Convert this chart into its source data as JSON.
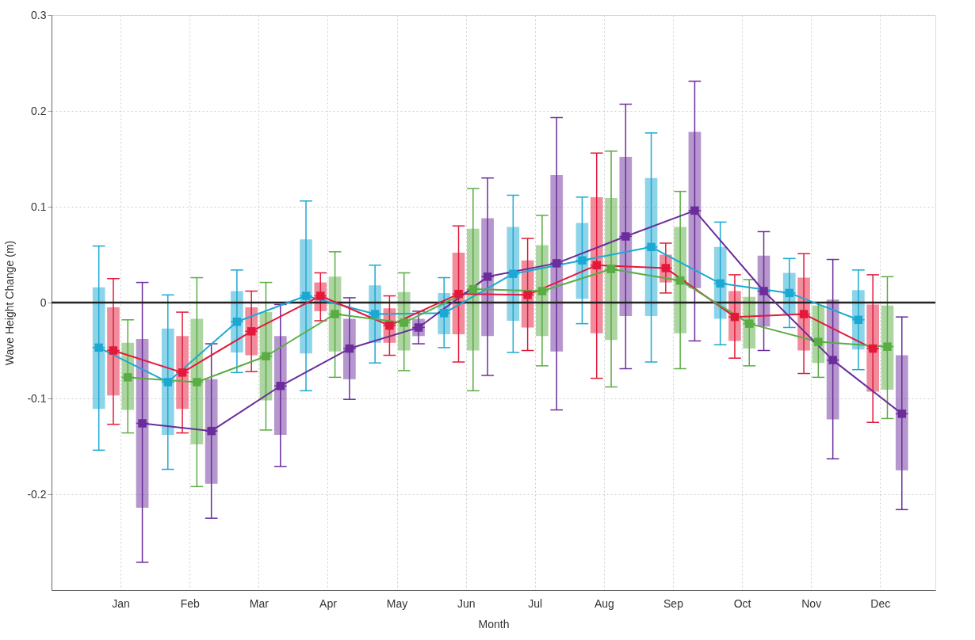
{
  "chart_data": {
    "type": "box",
    "xlabel": "Month",
    "ylabel": "Wave Height Change (m)",
    "categories": [
      "Jan",
      "Feb",
      "Mar",
      "Apr",
      "May",
      "Jun",
      "Jul",
      "Aug",
      "Sep",
      "Oct",
      "Nov",
      "Dec"
    ],
    "ylim": [
      -0.3,
      0.3
    ],
    "yticks": [
      -0.2,
      -0.1,
      0,
      0.1,
      0.2,
      0.3
    ],
    "grid": true,
    "marker": "square",
    "line_style": "solid",
    "ref_lines": [
      {
        "axis": "y",
        "value": 0,
        "color": "#222222"
      }
    ],
    "series": [
      {
        "color": "#1ba9d3",
        "boxes": [
          {
            "low": -0.154,
            "q1": -0.111,
            "median": -0.047,
            "q3": 0.016,
            "high": 0.059
          },
          {
            "low": -0.174,
            "q1": -0.138,
            "median": -0.083,
            "q3": -0.027,
            "high": 0.008
          },
          {
            "low": -0.073,
            "q1": -0.052,
            "median": -0.02,
            "q3": 0.012,
            "high": 0.034
          },
          {
            "low": -0.092,
            "q1": -0.053,
            "median": 0.007,
            "q3": 0.066,
            "high": 0.106
          },
          {
            "low": -0.063,
            "q1": -0.042,
            "median": -0.012,
            "q3": 0.018,
            "high": 0.039
          },
          {
            "low": -0.047,
            "q1": -0.033,
            "median": -0.011,
            "q3": 0.01,
            "high": 0.026
          },
          {
            "low": -0.052,
            "q1": -0.019,
            "median": 0.03,
            "q3": 0.079,
            "high": 0.112
          },
          {
            "low": -0.022,
            "q1": 0.004,
            "median": 0.044,
            "q3": 0.083,
            "high": 0.11
          },
          {
            "low": -0.062,
            "q1": -0.014,
            "median": 0.058,
            "q3": 0.13,
            "high": 0.177
          },
          {
            "low": -0.044,
            "q1": -0.017,
            "median": 0.02,
            "q3": 0.058,
            "high": 0.084
          },
          {
            "low": -0.026,
            "q1": -0.012,
            "median": 0.01,
            "q3": 0.031,
            "high": 0.046
          },
          {
            "low": -0.07,
            "q1": -0.049,
            "median": -0.018,
            "q3": 0.013,
            "high": 0.034
          }
        ]
      },
      {
        "color": "#e3193b",
        "boxes": [
          {
            "low": -0.127,
            "q1": -0.097,
            "median": -0.05,
            "q3": -0.005,
            "high": 0.025
          },
          {
            "low": -0.136,
            "q1": -0.111,
            "median": -0.073,
            "q3": -0.035,
            "high": -0.01
          },
          {
            "low": -0.072,
            "q1": -0.055,
            "median": -0.03,
            "q3": -0.005,
            "high": 0.012
          },
          {
            "low": -0.019,
            "q1": -0.009,
            "median": 0.007,
            "q3": 0.021,
            "high": 0.031
          },
          {
            "low": -0.055,
            "q1": -0.042,
            "median": -0.024,
            "q3": -0.006,
            "high": 0.007
          },
          {
            "low": -0.062,
            "q1": -0.033,
            "median": 0.009,
            "q3": 0.052,
            "high": 0.08
          },
          {
            "low": -0.05,
            "q1": -0.026,
            "median": 0.008,
            "q3": 0.044,
            "high": 0.067
          },
          {
            "low": -0.079,
            "q1": -0.032,
            "median": 0.039,
            "q3": 0.11,
            "high": 0.156
          },
          {
            "low": 0.01,
            "q1": 0.021,
            "median": 0.036,
            "q3": 0.05,
            "high": 0.062
          },
          {
            "low": -0.058,
            "q1": -0.04,
            "median": -0.015,
            "q3": 0.012,
            "high": 0.029
          },
          {
            "low": -0.074,
            "q1": -0.05,
            "median": -0.012,
            "q3": 0.026,
            "high": 0.051
          },
          {
            "low": -0.125,
            "q1": -0.093,
            "median": -0.048,
            "q3": -0.002,
            "high": 0.029
          }
        ]
      },
      {
        "color": "#5aac44",
        "boxes": [
          {
            "low": -0.136,
            "q1": -0.112,
            "median": -0.078,
            "q3": -0.042,
            "high": -0.018
          },
          {
            "low": -0.192,
            "q1": -0.148,
            "median": -0.083,
            "q3": -0.017,
            "high": 0.026
          },
          {
            "low": -0.133,
            "q1": -0.102,
            "median": -0.056,
            "q3": -0.01,
            "high": 0.021
          },
          {
            "low": -0.078,
            "q1": -0.051,
            "median": -0.012,
            "q3": 0.027,
            "high": 0.053
          },
          {
            "low": -0.071,
            "q1": -0.05,
            "median": -0.021,
            "q3": 0.011,
            "high": 0.031
          },
          {
            "low": -0.092,
            "q1": -0.05,
            "median": 0.014,
            "q3": 0.077,
            "high": 0.119
          },
          {
            "low": -0.066,
            "q1": -0.035,
            "median": 0.012,
            "q3": 0.06,
            "high": 0.091
          },
          {
            "low": -0.088,
            "q1": -0.039,
            "median": 0.035,
            "q3": 0.109,
            "high": 0.158
          },
          {
            "low": -0.069,
            "q1": -0.032,
            "median": 0.023,
            "q3": 0.079,
            "high": 0.116
          },
          {
            "low": -0.066,
            "q1": -0.048,
            "median": -0.022,
            "q3": 0.006,
            "high": 0.024
          },
          {
            "low": -0.078,
            "q1": -0.063,
            "median": -0.041,
            "q3": -0.003,
            "high": 0.0
          },
          {
            "low": -0.121,
            "q1": -0.091,
            "median": -0.046,
            "q3": -0.003,
            "high": 0.027
          }
        ]
      },
      {
        "type": "line",
        "color": "#1ba9d3",
        "values": [
          -0.047,
          -0.083,
          -0.02,
          0.007,
          -0.012,
          -0.011,
          0.03,
          0.044,
          0.058,
          0.02,
          0.01,
          -0.018
        ]
      },
      {
        "type": "line",
        "color": "#e3193b",
        "values": [
          -0.05,
          -0.073,
          -0.03,
          0.007,
          -0.024,
          0.009,
          0.008,
          0.039,
          0.036,
          -0.015,
          -0.012,
          -0.048
        ]
      },
      {
        "type": "line",
        "color": "#5aac44",
        "values": [
          -0.078,
          -0.083,
          -0.056,
          -0.012,
          -0.021,
          0.014,
          0.012,
          0.035,
          0.023,
          -0.022,
          -0.041,
          -0.046
        ]
      },
      {
        "type": "line",
        "color": "#6b2d9b",
        "values": [
          -0.126,
          -0.134,
          -0.087,
          -0.048,
          -0.026,
          0.027,
          0.041,
          0.069,
          0.096,
          0.012,
          -0.06,
          -0.116
        ]
      },
      {
        "color": "#6b2d9b",
        "boxes": [
          {
            "low": -0.271,
            "q1": -0.214,
            "median": -0.126,
            "q3": -0.038,
            "high": 0.021
          },
          {
            "low": -0.225,
            "q1": -0.189,
            "median": -0.134,
            "q3": -0.08,
            "high": -0.043
          },
          {
            "low": -0.171,
            "q1": -0.138,
            "median": -0.087,
            "q3": -0.035,
            "high": -0.002
          },
          {
            "low": -0.101,
            "q1": -0.08,
            "median": -0.048,
            "q3": -0.017,
            "high": 0.005
          },
          {
            "low": -0.043,
            "q1": -0.035,
            "median": -0.026,
            "q3": -0.017,
            "high": -0.009
          },
          {
            "low": -0.076,
            "q1": -0.035,
            "median": 0.027,
            "q3": 0.088,
            "high": 0.13
          },
          {
            "low": -0.112,
            "q1": -0.051,
            "median": 0.041,
            "q3": 0.133,
            "high": 0.193
          },
          {
            "low": -0.069,
            "q1": -0.014,
            "median": 0.069,
            "q3": 0.152,
            "high": 0.207
          },
          {
            "low": -0.04,
            "q1": 0.015,
            "median": 0.096,
            "q3": 0.178,
            "high": 0.231
          },
          {
            "low": -0.05,
            "q1": -0.025,
            "median": 0.012,
            "q3": 0.049,
            "high": 0.074
          },
          {
            "low": -0.163,
            "q1": -0.122,
            "median": -0.06,
            "q3": 0.003,
            "high": 0.045
          },
          {
            "low": -0.216,
            "q1": -0.175,
            "median": -0.116,
            "q3": -0.055,
            "high": -0.015
          }
        ]
      }
    ]
  }
}
